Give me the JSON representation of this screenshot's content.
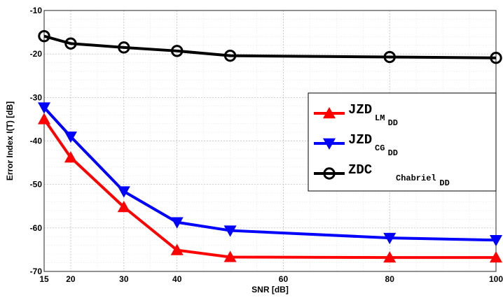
{
  "chart_data": {
    "type": "line",
    "xlabel": "SNR [dB]",
    "ylabel": "Error Index I(T) [dB]",
    "xlim": [
      15,
      100
    ],
    "ylim": [
      -70,
      -10
    ],
    "xticks": [
      15,
      20,
      30,
      40,
      60,
      80,
      100
    ],
    "yticks": [
      -70,
      -60,
      -50,
      -40,
      -30,
      -20,
      -10
    ],
    "grid": true,
    "legend_position": "right",
    "x": [
      15,
      20,
      30,
      40,
      50,
      80,
      100
    ],
    "series": [
      {
        "legend_main": "JZD",
        "legend_sub": "LM",
        "legend_subsub": "DD",
        "color": "#ff0000",
        "marker": "triangle-up",
        "values": [
          -35.0,
          -43.8,
          -55.2,
          -65.1,
          -66.7,
          -66.8,
          -66.8
        ]
      },
      {
        "legend_main": "JZD",
        "legend_sub": "CG",
        "legend_subsub": "DD",
        "color": "#0000ff",
        "marker": "triangle-down",
        "values": [
          -32.3,
          -39.0,
          -51.6,
          -58.7,
          -60.6,
          -62.3,
          -62.8
        ]
      },
      {
        "legend_main": "ZDC",
        "legend_sub": "Chabriel",
        "legend_subsub": "DD",
        "color": "#000000",
        "marker": "circle",
        "values": [
          -15.9,
          -17.6,
          -18.5,
          -19.3,
          -20.4,
          -20.7,
          -20.9
        ]
      }
    ]
  }
}
